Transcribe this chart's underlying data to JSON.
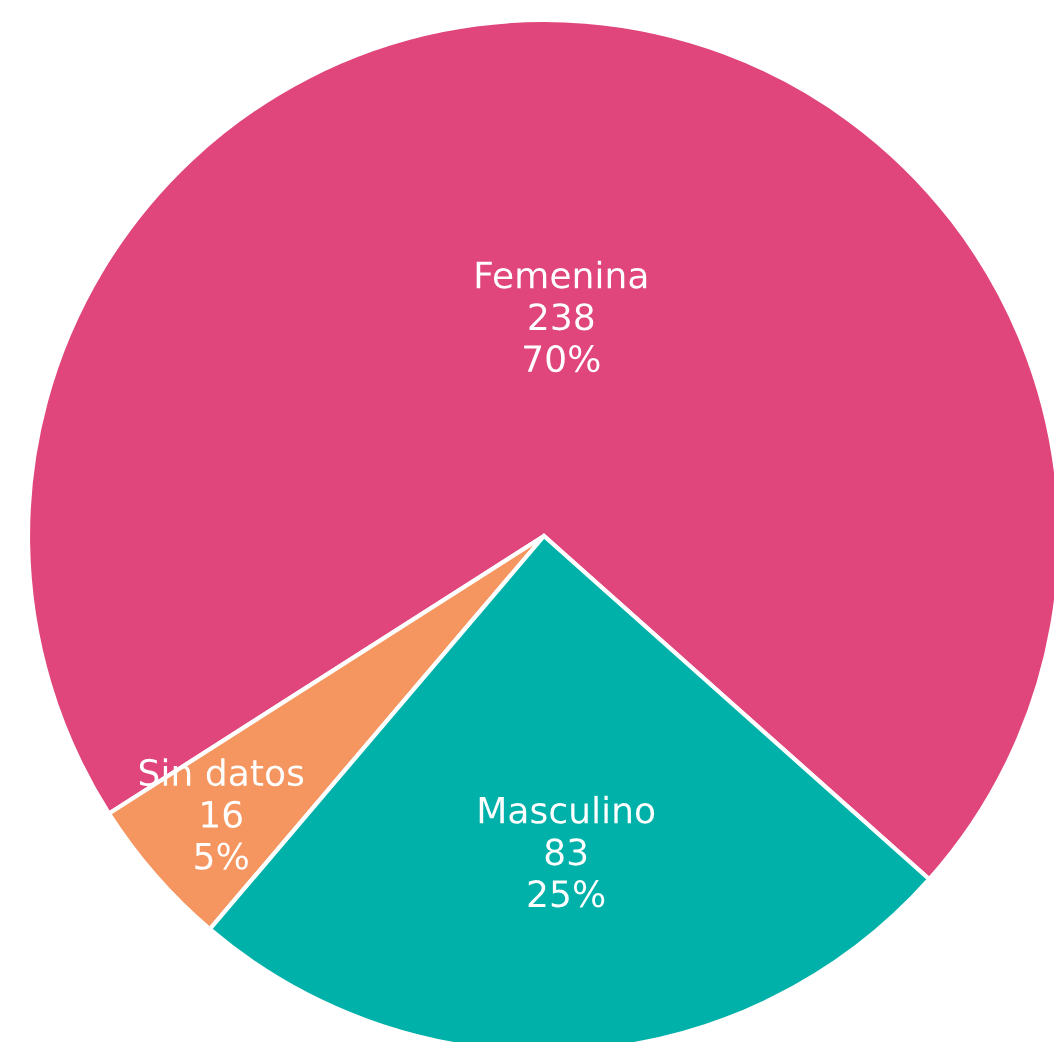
{
  "chart_data": {
    "type": "pie",
    "categories": [
      "Femenina",
      "Sin datos",
      "Masculino"
    ],
    "values": [
      238,
      16,
      83
    ],
    "colors": [
      "#e0467b",
      "#f5955f",
      "#00b1a9"
    ],
    "value_labels": [
      "238\n70%",
      "16\n5%",
      "83\n25%"
    ]
  }
}
